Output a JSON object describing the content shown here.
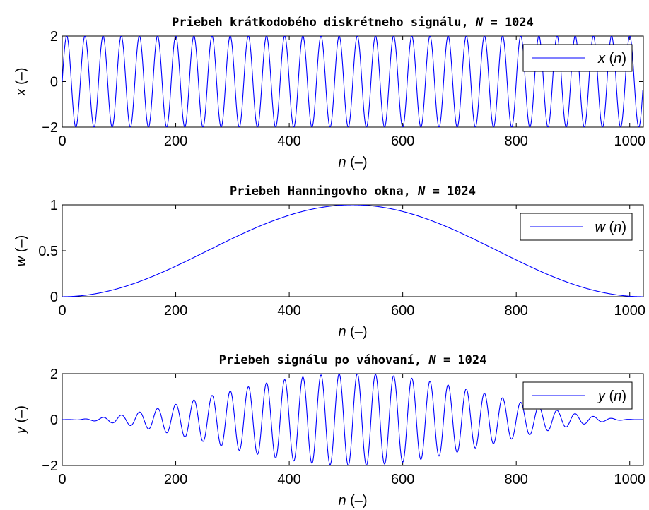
{
  "chart_data": [
    {
      "type": "line",
      "title": "Priebeh krátkodobého diskrétneho signálu, N = 1024",
      "title_parts": {
        "before": "Priebeh krátkodobého diskrétneho signálu, ",
        "var": "N",
        "after": " = 1024"
      },
      "xlabel": {
        "var": "n",
        "unit": "(–)"
      },
      "ylabel": {
        "var": "x",
        "unit": "(–)"
      },
      "xlim": [
        0,
        1024
      ],
      "ylim": [
        -2,
        2
      ],
      "xticks": [
        0,
        200,
        400,
        600,
        800,
        1000
      ],
      "xtick_labels": [
        "0",
        "200",
        "400",
        "600",
        "800",
        "1000"
      ],
      "yticks": [
        -2,
        0,
        2
      ],
      "ytick_labels": [
        "−2",
        "0",
        "2"
      ],
      "series": [
        {
          "name": "x (n)",
          "name_parts": {
            "var": "x",
            "arg": "(",
            "arg_var": "n",
            "close": ")"
          },
          "color": "#0000ff",
          "formula": "2*sin(2*pi*n/32)",
          "n": [
            0,
            1023
          ],
          "amplitude": 2,
          "period": 32,
          "window": "none"
        }
      ],
      "legend": "top-right",
      "grid": false
    },
    {
      "type": "line",
      "title": "Priebeh Hanningovho okna, N = 1024",
      "title_parts": {
        "before": "Priebeh Hanningovho okna, ",
        "var": "N",
        "after": " = 1024"
      },
      "xlabel": {
        "var": "n",
        "unit": "(–)"
      },
      "ylabel": {
        "var": "w",
        "unit": "(–)"
      },
      "xlim": [
        0,
        1024
      ],
      "ylim": [
        0,
        1
      ],
      "xticks": [
        0,
        200,
        400,
        600,
        800,
        1000
      ],
      "xtick_labels": [
        "0",
        "200",
        "400",
        "600",
        "800",
        "1000"
      ],
      "yticks": [
        0,
        0.5,
        1
      ],
      "ytick_labels": [
        "0",
        "0.5",
        "1"
      ],
      "series": [
        {
          "name": "w (n)",
          "name_parts": {
            "var": "w",
            "arg": "(",
            "arg_var": "n",
            "close": ")"
          },
          "color": "#0000ff",
          "formula": "0.5*(1-cos(2*pi*n/1023))",
          "n": [
            0,
            1023
          ],
          "amplitude": 1,
          "period": 1023,
          "window": "only"
        }
      ],
      "legend": "top-right",
      "grid": false
    },
    {
      "type": "line",
      "title": "Priebeh signálu po váhovaní, N = 1024",
      "title_parts": {
        "before": "Priebeh signálu po váhovaní, ",
        "var": "N",
        "after": " = 1024"
      },
      "xlabel": {
        "var": "n",
        "unit": "(–)"
      },
      "ylabel": {
        "var": "y",
        "unit": "(–)"
      },
      "xlim": [
        0,
        1024
      ],
      "ylim": [
        -2,
        2
      ],
      "xticks": [
        0,
        200,
        400,
        600,
        800,
        1000
      ],
      "xtick_labels": [
        "0",
        "200",
        "400",
        "600",
        "800",
        "1000"
      ],
      "yticks": [
        -2,
        0,
        2
      ],
      "ytick_labels": [
        "−2",
        "0",
        "2"
      ],
      "series": [
        {
          "name": "y (n)",
          "name_parts": {
            "var": "y",
            "arg": "(",
            "arg_var": "n",
            "close": ")"
          },
          "color": "#0000ff",
          "formula": "x(n)*w(n)",
          "n": [
            0,
            1023
          ],
          "amplitude": 2,
          "period": 32,
          "window": "hann"
        }
      ],
      "legend": "top-right",
      "grid": false
    }
  ]
}
